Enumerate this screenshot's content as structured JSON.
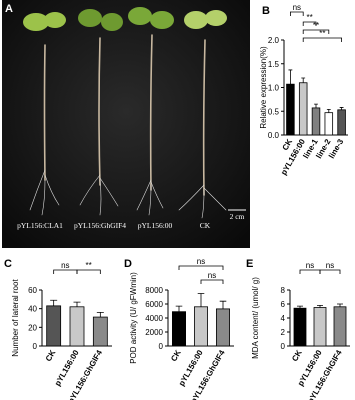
{
  "photo": {
    "panel": "A",
    "captions": [
      "pYL156:CLA1",
      "pYL156:GhGIF4",
      "pYL156:00",
      "CK"
    ],
    "scale_bar": "2 cm"
  },
  "chart_data": [
    {
      "type": "bar",
      "panel": "B",
      "y_label": "Relative expression(%)",
      "categories": [
        "CK",
        "pYL156:00",
        "line-1",
        "line-2",
        "line-3"
      ],
      "values": [
        1.07,
        1.1,
        0.57,
        0.47,
        0.53
      ],
      "errors": [
        0.3,
        0.1,
        0.08,
        0.07,
        0.05
      ],
      "colors": [
        "#000000",
        "#c8c8c8",
        "#808080",
        "#ffffff",
        "#555555"
      ],
      "ylim": [
        0,
        2
      ],
      "yticks": [
        {
          "value": 0,
          "label": "0.0"
        },
        {
          "value": 0.5,
          "label": "0.5"
        },
        {
          "value": 1,
          "label": "1.0"
        },
        {
          "value": 1.5,
          "label": "1.5"
        },
        {
          "value": 2,
          "label": "2.0"
        }
      ],
      "annotations": [
        "ns",
        "**",
        "**",
        "**"
      ]
    },
    {
      "type": "bar",
      "panel": "C",
      "y_label": "Number of lateral root",
      "categories": [
        "CK",
        "pYL156:00",
        "pYL156:GhGIF4"
      ],
      "values": [
        43,
        42,
        31
      ],
      "errors": [
        6,
        5,
        5
      ],
      "colors": [
        "#555555",
        "#c8c8c8",
        "#8a8a8a"
      ],
      "ylim": [
        0,
        60
      ],
      "yticks": [
        0,
        20,
        40,
        60
      ],
      "annotations": [
        "ns",
        "**"
      ]
    },
    {
      "type": "bar",
      "panel": "D",
      "y_label": "POD activity (U/ gFWmin)",
      "categories": [
        "CK",
        "pYL156:00",
        "pYL156:GhGIF4"
      ],
      "values": [
        4900,
        5600,
        5300
      ],
      "errors": [
        800,
        1900,
        1100
      ],
      "colors": [
        "#000000",
        "#c8c8c8",
        "#8a8a8a"
      ],
      "ylim": [
        0,
        8000
      ],
      "yticks": [
        0,
        2000,
        4000,
        6000,
        8000
      ],
      "annotations": [
        "ns",
        "ns"
      ]
    },
    {
      "type": "bar",
      "panel": "E",
      "y_label": "MDA content/ (umol/ g)",
      "categories": [
        "CK",
        "pYL156:00",
        "pYL156:GhGIF4"
      ],
      "values": [
        5.4,
        5.5,
        5.6
      ],
      "errors": [
        0.3,
        0.3,
        0.4
      ],
      "colors": [
        "#000000",
        "#c8c8c8",
        "#8a8a8a"
      ],
      "ylim": [
        0,
        8
      ],
      "yticks": [
        0,
        2,
        4,
        6,
        8
      ],
      "annotations": [
        "ns",
        "ns"
      ]
    }
  ]
}
